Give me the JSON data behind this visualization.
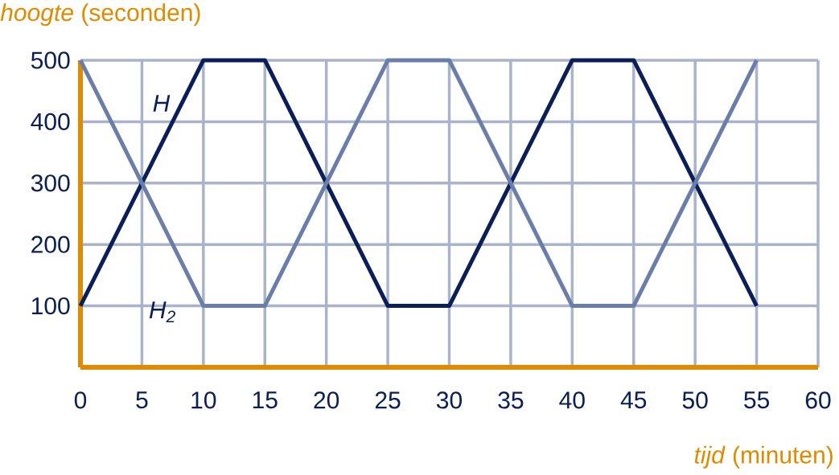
{
  "chart_data": {
    "type": "line",
    "ylabel": "*hoogte* (seconden)",
    "xlabel": "*tijd* (minuten)",
    "x": [
      0,
      10,
      15,
      25,
      30,
      40,
      45,
      55
    ],
    "series": [
      {
        "name": "H",
        "color": "#0b1f57",
        "values": [
          100,
          500,
          500,
          100,
          100,
          500,
          500,
          100
        ]
      },
      {
        "name": "H$_{2}$",
        "color": "#6b7ea8",
        "values": [
          500,
          100,
          100,
          500,
          500,
          100,
          100,
          500
        ]
      }
    ],
    "xlim": [
      0,
      60
    ],
    "xticks": [
      0,
      5,
      10,
      15,
      20,
      25,
      30,
      35,
      40,
      45,
      50,
      55,
      60
    ],
    "ylim": [
      0,
      500
    ],
    "yticks": [
      100,
      200,
      300,
      400,
      500
    ],
    "grid": true,
    "marker": "none",
    "line_style": "solid"
  }
}
